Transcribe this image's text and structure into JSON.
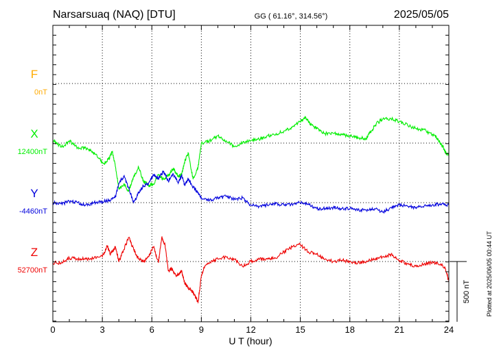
{
  "header": {
    "station": "Narsarsuaq (NAQ)  [DTU]",
    "coords": "GG ( 61.16°, 314.56°)",
    "date": "2025/05/05"
  },
  "footer": {
    "xlabel": "U T (hour)",
    "plotted": "Plotted at 2025/06/05 00:44 UT",
    "scale_label": "500 nT"
  },
  "colors": {
    "F": "#ffaa00",
    "X": "#00ee00",
    "Y": "#0000dd",
    "Z": "#ee0000",
    "axis": "#000000"
  },
  "chart_data": {
    "type": "line",
    "x_range": [
      0,
      24
    ],
    "x_ticks": [
      0,
      3,
      6,
      9,
      12,
      15,
      18,
      21,
      24
    ],
    "x_ticklabels": [
      "0",
      "3",
      "6",
      "9",
      "12",
      "15",
      "18",
      "21",
      "24"
    ],
    "scale_bar_nT": 500,
    "grid": true,
    "series": [
      {
        "name": "F",
        "baseline_label": "0nT",
        "baseline_nT": 0,
        "x": [],
        "values": []
      },
      {
        "name": "X",
        "baseline_label": "12400nT",
        "baseline_nT": 12400,
        "x": [
          0,
          0.3,
          0.6,
          1,
          1.5,
          2,
          2.4,
          2.8,
          3.1,
          3.4,
          3.6,
          3.8,
          4,
          4.3,
          4.6,
          4.9,
          5.2,
          5.5,
          5.8,
          6.1,
          6.4,
          6.7,
          7,
          7.3,
          7.6,
          7.8,
          8,
          8.2,
          8.5,
          8.8,
          9,
          9.5,
          10,
          10.5,
          11,
          11.5,
          12,
          12.5,
          13,
          13.5,
          14,
          14.5,
          15,
          15.3,
          15.6,
          16,
          16.5,
          17,
          17.5,
          18,
          18.5,
          19,
          19.3,
          19.6,
          20,
          20.5,
          21,
          21.5,
          22,
          22.5,
          23,
          23.3,
          23.6,
          23.8,
          24
        ],
        "values": [
          12420,
          12390,
          12370,
          12420,
          12360,
          12360,
          12330,
          12270,
          12230,
          12270,
          12330,
          12200,
          12020,
          12060,
          12000,
          12120,
          12200,
          12080,
          12050,
          12060,
          12140,
          12100,
          12130,
          12190,
          12120,
          12140,
          12250,
          12320,
          12100,
          12200,
          12400,
          12420,
          12460,
          12420,
          12370,
          12400,
          12420,
          12430,
          12460,
          12470,
          12500,
          12530,
          12580,
          12620,
          12560,
          12520,
          12480,
          12480,
          12470,
          12460,
          12440,
          12440,
          12500,
          12560,
          12600,
          12600,
          12580,
          12550,
          12520,
          12510,
          12470,
          12440,
          12380,
          12320,
          12300
        ]
      },
      {
        "name": "Y",
        "baseline_label": "-4460nT",
        "baseline_nT": -4460,
        "x": [
          0,
          0.5,
          1,
          1.5,
          2,
          2.5,
          3,
          3.5,
          3.8,
          4,
          4.3,
          4.6,
          4.9,
          5.2,
          5.5,
          5.8,
          6.1,
          6.4,
          6.7,
          7,
          7.3,
          7.6,
          7.8,
          8,
          8.2,
          8.5,
          8.8,
          9,
          9.5,
          10,
          10.5,
          11,
          11.5,
          12,
          12.5,
          13,
          13.5,
          14,
          14.5,
          15,
          15.5,
          16,
          16.5,
          17,
          17.5,
          18,
          18.5,
          19,
          19.5,
          20,
          20.5,
          21,
          21.5,
          22,
          22.5,
          23,
          23.5,
          24
        ],
        "values": [
          -4460,
          -4470,
          -4450,
          -4460,
          -4480,
          -4460,
          -4450,
          -4440,
          -4410,
          -4300,
          -4240,
          -4340,
          -4460,
          -4380,
          -4320,
          -4300,
          -4230,
          -4260,
          -4200,
          -4280,
          -4220,
          -4300,
          -4230,
          -4320,
          -4260,
          -4330,
          -4380,
          -4420,
          -4440,
          -4420,
          -4410,
          -4430,
          -4420,
          -4480,
          -4490,
          -4480,
          -4470,
          -4480,
          -4470,
          -4460,
          -4470,
          -4510,
          -4510,
          -4500,
          -4510,
          -4510,
          -4520,
          -4520,
          -4510,
          -4540,
          -4500,
          -4480,
          -4490,
          -4500,
          -4490,
          -4480,
          -4470,
          -4480
        ]
      },
      {
        "name": "Z",
        "baseline_label": "52700nT",
        "baseline_nT": 52700,
        "x": [
          0,
          0.5,
          1,
          1.5,
          2,
          2.5,
          3,
          3.3,
          3.5,
          3.8,
          4,
          4.3,
          4.6,
          4.9,
          5.2,
          5.5,
          5.8,
          6.1,
          6.4,
          6.6,
          6.8,
          7,
          7.2,
          7.5,
          7.8,
          8,
          8.2,
          8.4,
          8.6,
          8.8,
          9,
          9.2,
          9.5,
          10,
          10.5,
          11,
          11.5,
          12,
          12.5,
          13,
          13.5,
          14,
          14.5,
          15,
          15.5,
          16,
          16.5,
          17,
          17.5,
          18,
          18.5,
          19,
          19.5,
          20,
          20.5,
          21,
          21.5,
          22,
          22.5,
          23,
          23.5,
          23.8,
          24
        ],
        "values": [
          52690,
          52690,
          52730,
          52720,
          52720,
          52730,
          52740,
          52830,
          52760,
          52820,
          52700,
          52800,
          52900,
          52800,
          52720,
          52700,
          52740,
          52820,
          52690,
          52900,
          52840,
          52620,
          52640,
          52580,
          52620,
          52520,
          52480,
          52460,
          52420,
          52360,
          52580,
          52660,
          52690,
          52720,
          52740,
          52720,
          52660,
          52700,
          52720,
          52720,
          52730,
          52780,
          52820,
          52840,
          52780,
          52760,
          52720,
          52700,
          52710,
          52700,
          52690,
          52700,
          52720,
          52740,
          52760,
          52710,
          52680,
          52660,
          52680,
          52690,
          52680,
          52640,
          52530
        ]
      }
    ]
  }
}
